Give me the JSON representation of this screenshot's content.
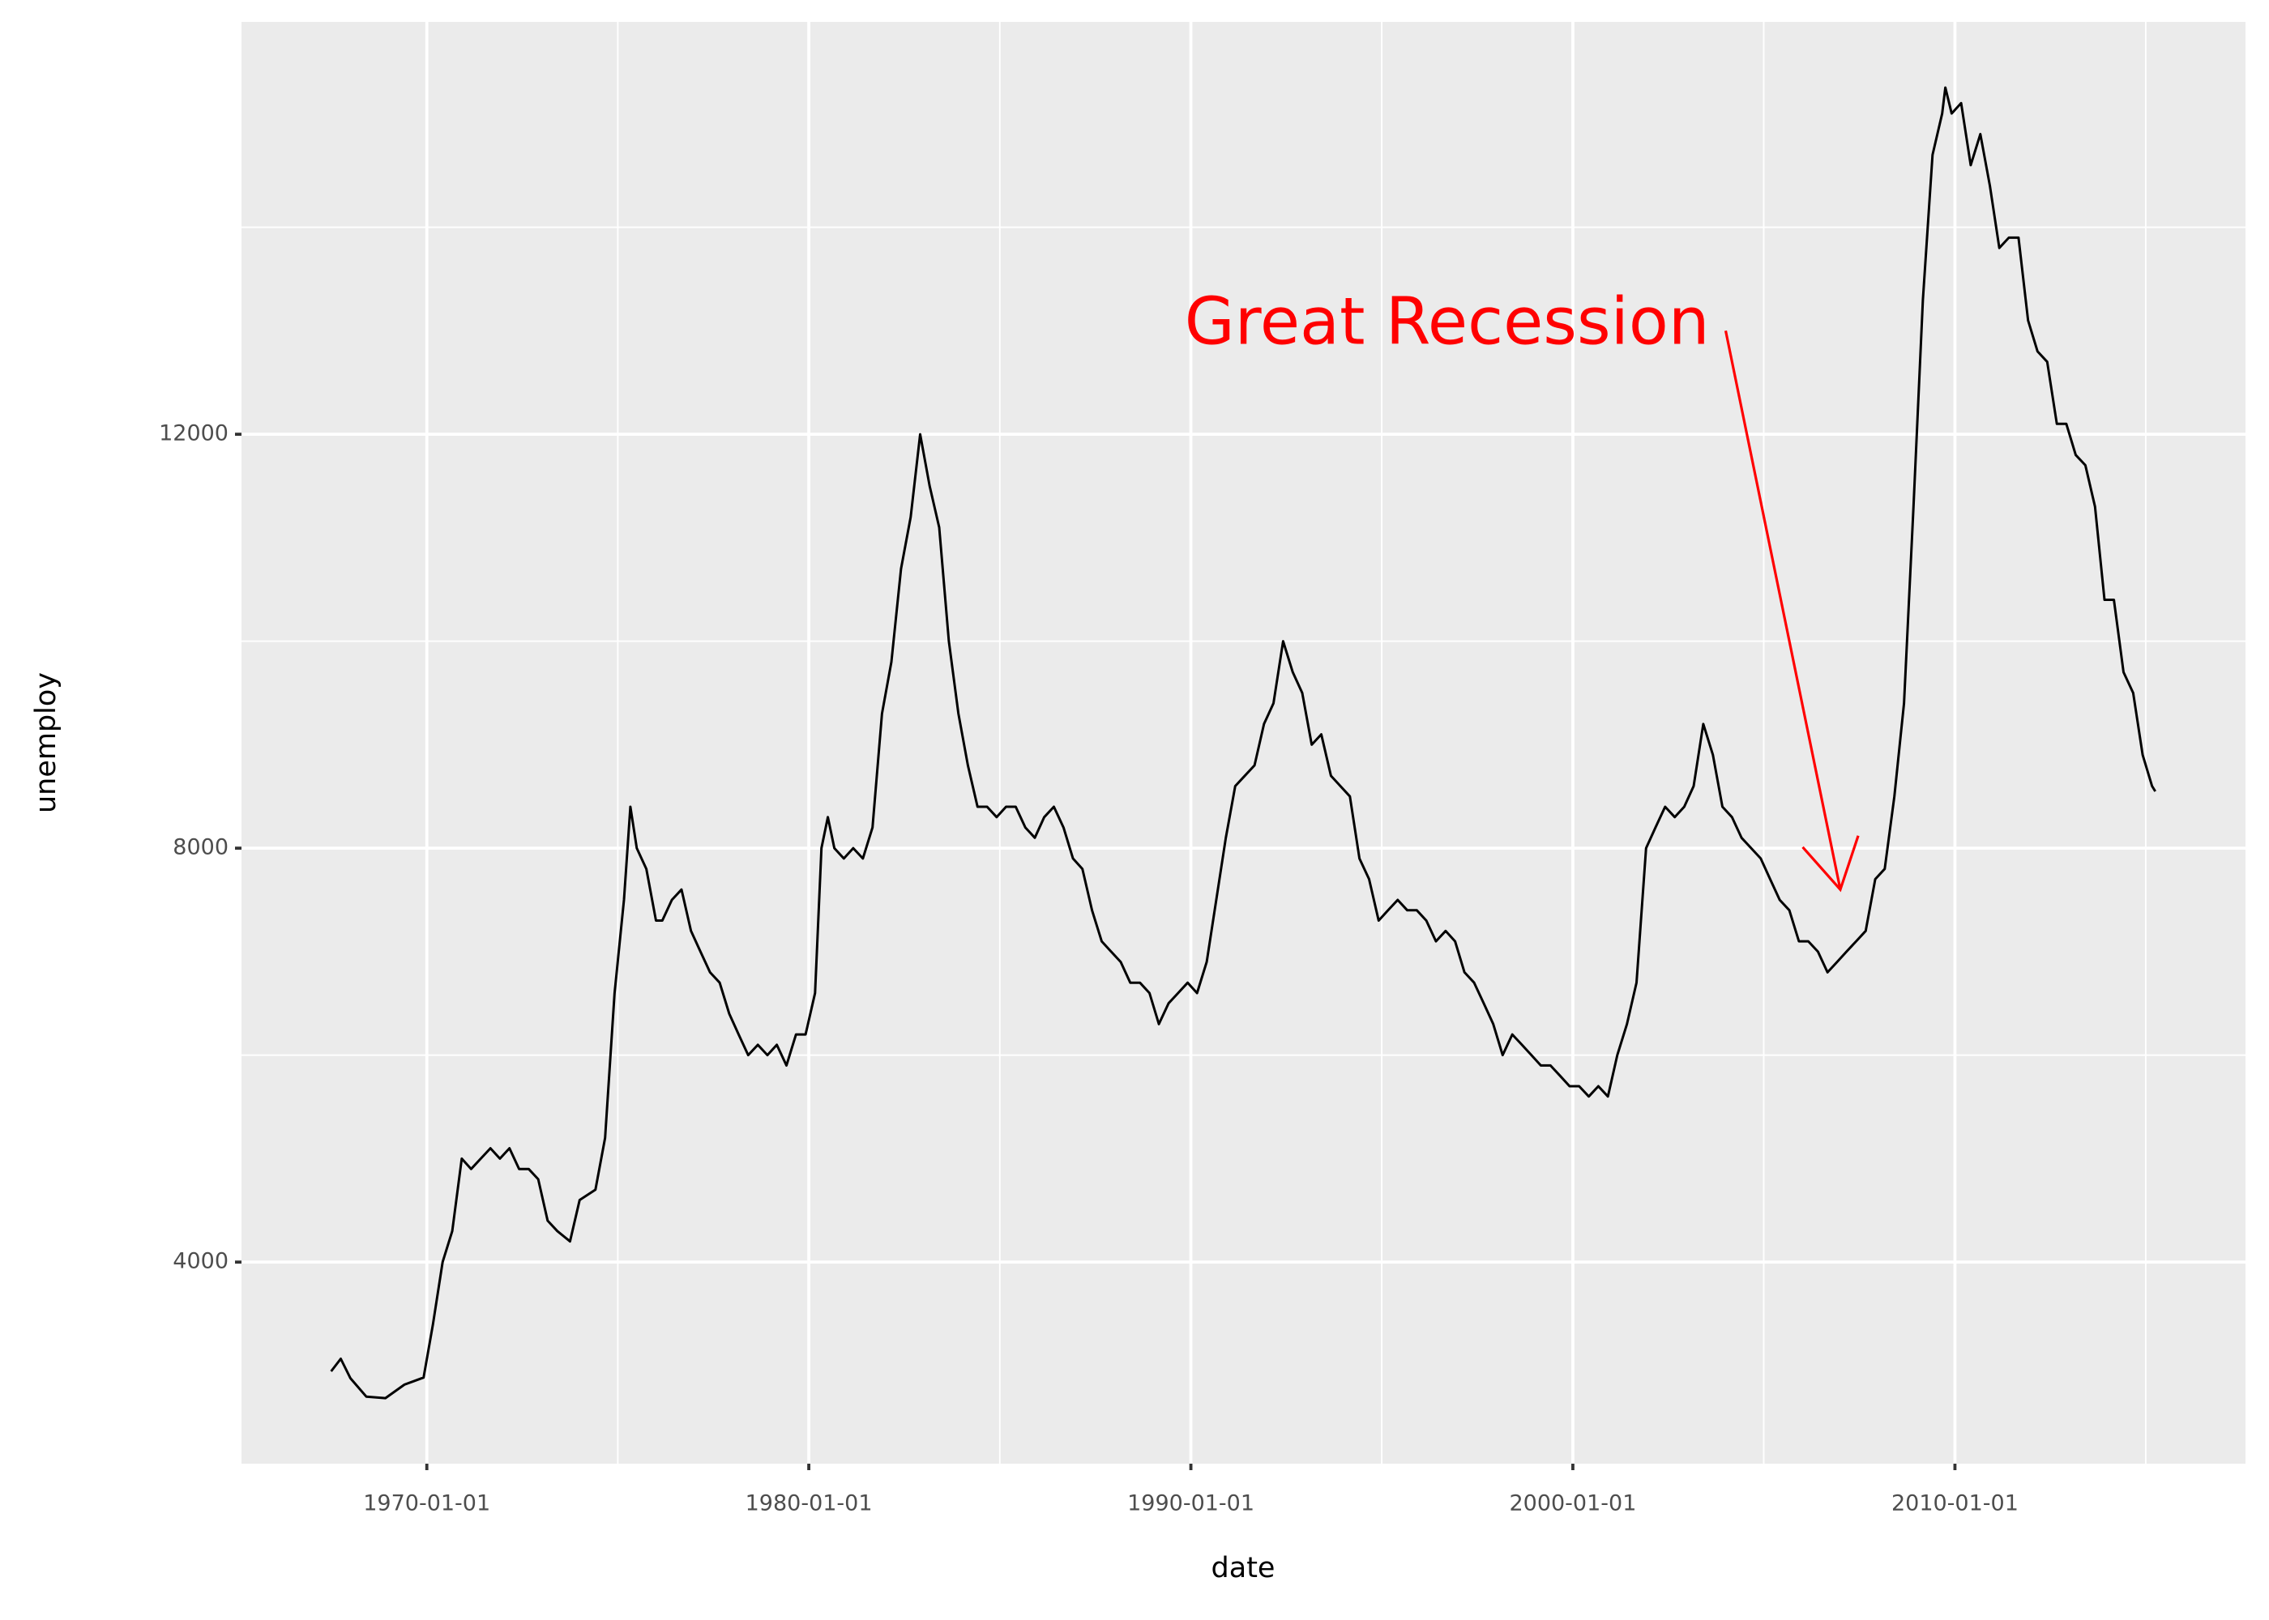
{
  "chart_data": {
    "type": "line",
    "x_label": "date",
    "y_label": "unemploy",
    "xlim": [
      "1965-02-24",
      "2017-08-10"
    ],
    "xticks": [
      "1970-01-01",
      "1980-01-01",
      "1990-01-01",
      "2000-01-01",
      "2010-01-01"
    ],
    "ylim": [
      2052,
      15985
    ],
    "yticks": [
      4000,
      8000,
      12000
    ],
    "grid": true,
    "color": "#000000",
    "x": [
      "1967-07-01",
      "1967-10-01",
      "1968-01-01",
      "1968-06-01",
      "1968-12-01",
      "1969-06-01",
      "1969-12-01",
      "1970-03-01",
      "1970-06-01",
      "1970-09-01",
      "1970-12-01",
      "1971-03-01",
      "1971-06-01",
      "1971-09-01",
      "1971-12-01",
      "1972-03-01",
      "1972-06-01",
      "1972-09-01",
      "1972-12-01",
      "1973-03-01",
      "1973-06-01",
      "1973-10-01",
      "1974-01-01",
      "1974-06-01",
      "1974-09-01",
      "1974-12-01",
      "1975-03-01",
      "1975-05-01",
      "1975-07-01",
      "1975-10-01",
      "1976-01-01",
      "1976-03-01",
      "1976-06-01",
      "1976-09-01",
      "1976-12-01",
      "1977-03-01",
      "1977-06-01",
      "1977-09-01",
      "1977-12-01",
      "1978-03-01",
      "1978-06-01",
      "1978-09-01",
      "1978-12-01",
      "1979-03-01",
      "1979-06-01",
      "1979-09-01",
      "1979-12-01",
      "1980-03-01",
      "1980-05-01",
      "1980-07-01",
      "1980-09-01",
      "1980-12-01",
      "1981-03-01",
      "1981-06-01",
      "1981-09-01",
      "1981-12-01",
      "1982-03-01",
      "1982-06-01",
      "1982-09-01",
      "1982-12-01",
      "1983-03-01",
      "1983-06-01",
      "1983-09-01",
      "1983-12-01",
      "1984-03-01",
      "1984-06-01",
      "1984-09-01",
      "1984-12-01",
      "1985-03-01",
      "1985-06-01",
      "1985-09-01",
      "1985-12-01",
      "1986-03-01",
      "1986-06-01",
      "1986-09-01",
      "1986-12-01",
      "1987-03-01",
      "1987-06-01",
      "1987-09-01",
      "1987-12-01",
      "1988-03-01",
      "1988-06-01",
      "1988-09-01",
      "1988-12-01",
      "1989-03-01",
      "1989-06-01",
      "1989-09-01",
      "1989-12-01",
      "1990-03-01",
      "1990-06-01",
      "1990-09-01",
      "1990-12-01",
      "1991-03-01",
      "1991-06-01",
      "1991-09-01",
      "1991-12-01",
      "1992-03-01",
      "1992-06-01",
      "1992-09-01",
      "1992-12-01",
      "1993-03-01",
      "1993-06-01",
      "1993-09-01",
      "1993-12-01",
      "1994-03-01",
      "1994-06-01",
      "1994-09-01",
      "1994-12-01",
      "1995-03-01",
      "1995-06-01",
      "1995-09-01",
      "1995-12-01",
      "1996-03-01",
      "1996-06-01",
      "1996-09-01",
      "1996-12-01",
      "1997-03-01",
      "1997-06-01",
      "1997-09-01",
      "1997-12-01",
      "1998-03-01",
      "1998-06-01",
      "1998-09-01",
      "1998-12-01",
      "1999-03-01",
      "1999-06-01",
      "1999-09-01",
      "1999-12-01",
      "2000-03-01",
      "2000-06-01",
      "2000-09-01",
      "2000-12-01",
      "2001-03-01",
      "2001-06-01",
      "2001-09-01",
      "2001-12-01",
      "2002-03-01",
      "2002-06-01",
      "2002-09-01",
      "2002-12-01",
      "2003-03-01",
      "2003-06-01",
      "2003-09-01",
      "2003-12-01",
      "2004-03-01",
      "2004-06-01",
      "2004-09-01",
      "2004-12-01",
      "2005-03-01",
      "2005-06-01",
      "2005-09-01",
      "2005-12-01",
      "2006-03-01",
      "2006-06-01",
      "2006-09-01",
      "2006-12-01",
      "2007-03-01",
      "2007-06-01",
      "2007-09-01",
      "2007-12-01",
      "2008-03-01",
      "2008-06-01",
      "2008-09-01",
      "2008-12-01",
      "2009-03-01",
      "2009-06-01",
      "2009-09-01",
      "2009-10-01",
      "2009-12-01",
      "2010-03-01",
      "2010-06-01",
      "2010-09-01",
      "2010-12-01",
      "2011-03-01",
      "2011-06-01",
      "2011-09-01",
      "2011-12-01",
      "2012-03-01",
      "2012-06-01",
      "2012-09-01",
      "2012-12-01",
      "2013-03-01",
      "2013-06-01",
      "2013-09-01",
      "2013-12-01",
      "2014-03-01",
      "2014-06-01",
      "2014-09-01",
      "2014-12-01",
      "2015-03-01",
      "2015-04-01"
    ],
    "values": [
      2944,
      3066,
      2878,
      2700,
      2685,
      2816,
      2884,
      3400,
      4000,
      4300,
      5000,
      4900,
      5000,
      5100,
      5000,
      5100,
      4900,
      4900,
      4800,
      4400,
      4300,
      4200,
      4600,
      4700,
      5200,
      6600,
      7500,
      8400,
      8000,
      7800,
      7300,
      7300,
      7500,
      7600,
      7200,
      7000,
      6800,
      6700,
      6400,
      6200,
      6000,
      6100,
      6000,
      6100,
      5900,
      6200,
      6200,
      6600,
      8000,
      8300,
      8000,
      7900,
      8000,
      7900,
      8200,
      9300,
      9800,
      10700,
      11200,
      12000,
      11500,
      11100,
      10000,
      9300,
      8800,
      8400,
      8400,
      8300,
      8400,
      8400,
      8200,
      8100,
      8300,
      8400,
      8200,
      7900,
      7800,
      7400,
      7100,
      7000,
      6900,
      6700,
      6700,
      6600,
      6300,
      6500,
      6600,
      6700,
      6600,
      6900,
      7500,
      8100,
      8600,
      8700,
      8800,
      9200,
      9400,
      10000,
      9700,
      9500,
      9000,
      9100,
      8700,
      8600,
      8500,
      7900,
      7700,
      7300,
      7400,
      7500,
      7400,
      7400,
      7300,
      7100,
      7200,
      7100,
      6800,
      6700,
      6500,
      6300,
      6000,
      6200,
      6100,
      6000,
      5900,
      5900,
      5800,
      5700,
      5700,
      5600,
      5700,
      5600,
      6000,
      6300,
      6700,
      8000,
      8200,
      8400,
      8300,
      8400,
      8600,
      9200,
      8900,
      8400,
      8300,
      8100,
      8000,
      7900,
      7700,
      7500,
      7400,
      7100,
      7100,
      7000,
      6800,
      6900,
      7000,
      7100,
      7200,
      7700,
      7800,
      8500,
      9400,
      11300,
      13300,
      14700,
      15100,
      15350,
      15100,
      15200,
      14600,
      14900,
      14400,
      13800,
      13900,
      13900,
      13100,
      12800,
      12700,
      12100,
      12100,
      11800,
      11700,
      11300,
      10400,
      10400,
      9700,
      9500,
      8900,
      8600,
      8549
    ],
    "annotation": {
      "text": "Great Recession",
      "color": "#ff0000",
      "x": "2004-01-01",
      "y": 13000,
      "arrow_x": "2007-01-01",
      "arrow_y": 7600
    }
  }
}
